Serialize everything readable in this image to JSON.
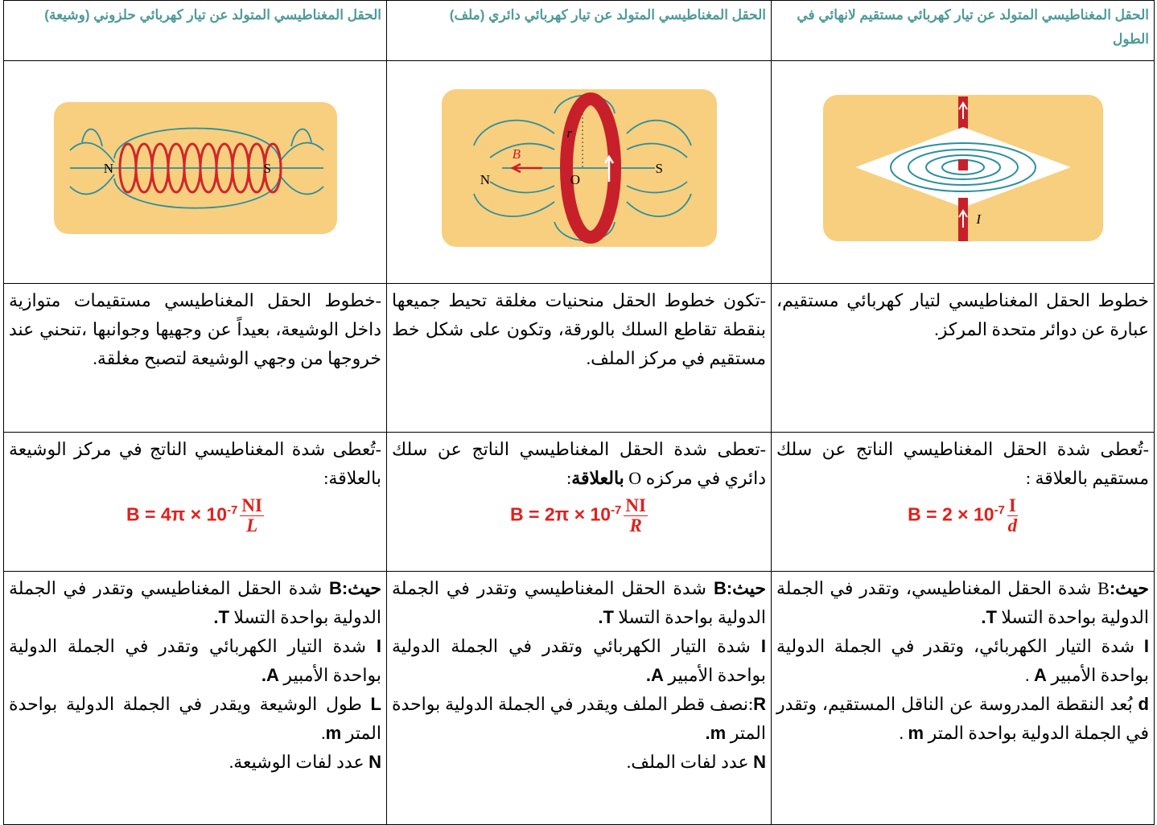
{
  "table": {
    "rows": [
      [
        {
          "header": "الحقل المغناطيسي المتولد عن تيار كهربائي مستقيم لانهائي في الطول"
        },
        {
          "header": "الحقل المغناطيسي المتولد عن تيار كهربائي دائري (ملف)"
        },
        {
          "header": "الحقل المغناطيسي المتولد عن تيار كهربائي حلزوني (وشيعة)"
        }
      ],
      [
        {
          "labels": [
            "I"
          ]
        },
        {
          "labels": [
            "N",
            "S",
            "O",
            "r",
            "B"
          ]
        },
        {
          "labels": [
            "N",
            "S"
          ]
        }
      ],
      [
        {
          "text": "خطوط الحقل المغناطيسي لتيار كهربائي مستقيم، عبارة عن دوائر متحدة المركز."
        },
        {
          "text": "-تكون خطوط الحقل منحنيات مغلقة تحيط جميعها بنقطة تقاطع السلك بالورقة، وتكون على شكل خط مستقيم في مركز الملف."
        },
        {
          "text": "-خطوط الحقل المغناطيسي مستقيمات متوازية داخل الوشيعة، بعيداً عن وجهيها وجوانبها ،تنحني عند خروجها من وجهي الوشيعة لتصبح مغلقة."
        }
      ],
      [
        {
          "text": [
            "-تُعطى شدة الحقل المغناطيسي الناتج عن سلك مستقيم بالعلاقة :"
          ],
          "formula": {
            "lhs": "B = 2 × 10",
            "exp": "-7",
            "num": "I",
            "den": "d"
          }
        },
        {
          "text": [
            "-تعطى شدة الحقل المغناطيسي الناتج عن سلك دائري في مركزه O ",
            {
              "b": "بالعلاقة"
            },
            ":"
          ],
          "formula": {
            "lhs": "B = 2π × 10",
            "exp": "-7",
            "num": "NI",
            "den": "R"
          }
        },
        {
          "text": [
            "-تُعطى شدة المغناطيسي الناتج في مركز الوشيعة بالعلاقة:"
          ],
          "formula": {
            "lhs": "B = 4π × 10",
            "exp": "-7",
            "num": "NI",
            "den": "L"
          }
        }
      ],
      [
        {
          "paras": [
            [
              {
                "b": "حيث:"
              },
              "B شدة الحقل المغناطيسي، وتقدر في الجملة الدولية بواحدة التسلا ",
              {
                "b": "T."
              }
            ],
            [
              {
                "b": "I"
              },
              " شدة التيار الكهربائي، وتقدر في الجملة الدولية بواحدة الأمبير ",
              {
                "b": "A"
              },
              " ."
            ],
            [
              {
                "b": "d"
              },
              " بُعد النقطة المدروسة عن الناقل المستقيم، وتقدر في الجملة الدولية بواحدة المتر ",
              {
                "b": "m"
              },
              " ."
            ]
          ]
        },
        {
          "paras": [
            [
              {
                "b": "حيث:B"
              },
              " شدة الحقل المغناطيسي وتقدر في الجملة الدولية بواحدة التسلا ",
              {
                "b": "T."
              }
            ],
            [
              {
                "b": "I"
              },
              " شدة التيار الكهربائي وتقدر في الجملة الدولية بواحدة الأمبير ",
              {
                "b": "A."
              }
            ],
            [
              {
                "b": "R"
              },
              ":نصف قطر الملف ويقدر في الجملة الدولية بواحدة المتر ",
              {
                "b": "m."
              }
            ],
            [
              {
                "b": "N"
              },
              " عدد لفات الملف."
            ]
          ]
        },
        {
          "paras": [
            [
              {
                "b": "حيث:B"
              },
              " شدة الحقل المغناطيسي وتقدر في الجملة الدولية بواحدة التسلا ",
              {
                "b": "T."
              }
            ],
            [
              {
                "b": "I"
              },
              " شدة التيار الكهربائي وتقدر في الجملة الدولية بواحدة الأمبير ",
              {
                "b": "A."
              }
            ],
            [
              {
                "b": "L"
              },
              " طول الوشيعة ويقدر في الجملة الدولية بواحدة المتر ",
              {
                "b": "m"
              },
              "."
            ],
            [
              {
                "b": "N"
              },
              " عدد لفات الوشيعة."
            ]
          ]
        }
      ]
    ]
  }
}
